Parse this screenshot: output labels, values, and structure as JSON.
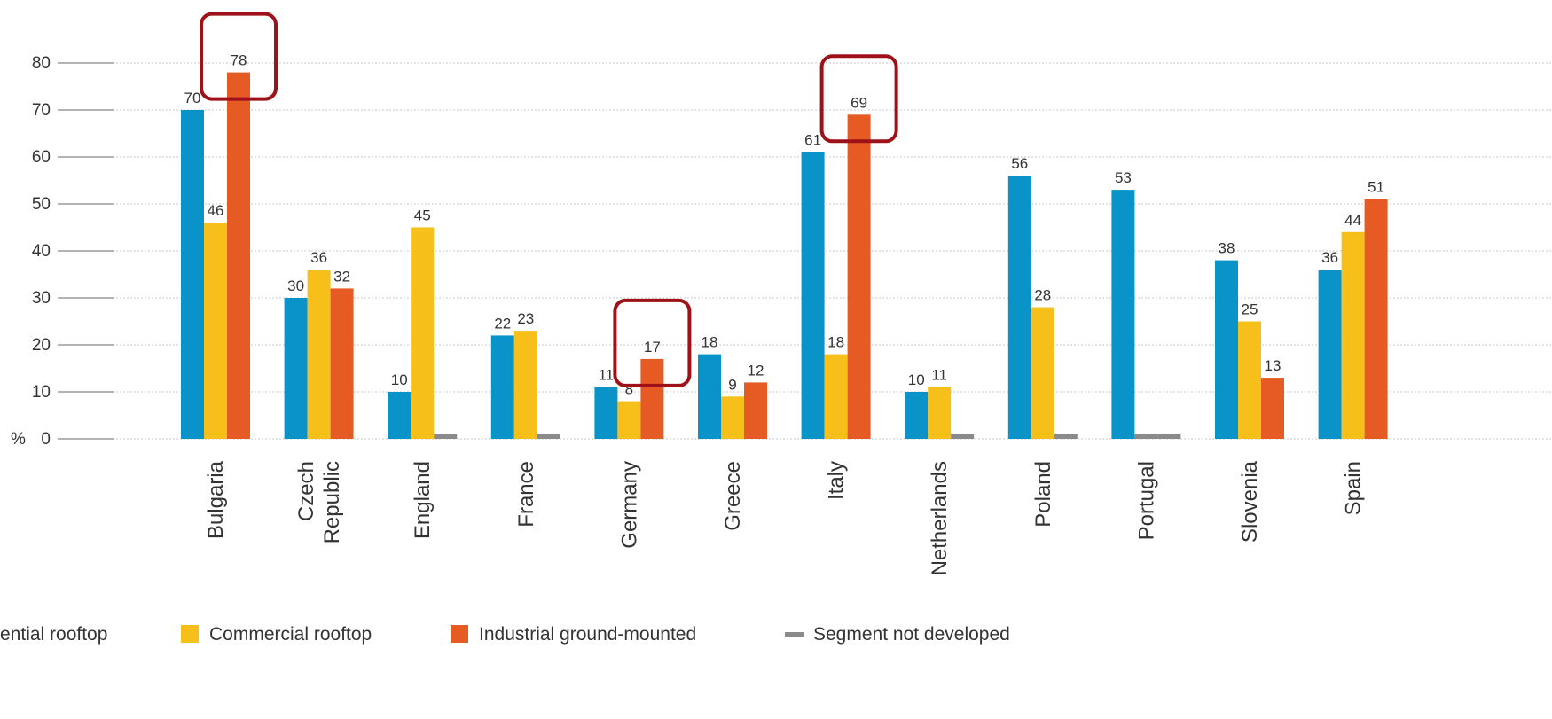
{
  "colors": {
    "residential": "#0a93c9",
    "commercial": "#f7bf1a",
    "industrial": "#e65a24",
    "not_developed": "#8a8a8a",
    "highlight": "#9f1118",
    "text": "#333333",
    "grid": "#c9c9c9"
  },
  "chart_data": {
    "type": "bar",
    "y_unit": "%",
    "ylim": [
      0,
      80
    ],
    "yticks": [
      0,
      10,
      20,
      30,
      40,
      50,
      60,
      70,
      80
    ],
    "categories": [
      "Bulgaria",
      "Czech Republic",
      "England",
      "France",
      "Germany",
      "Greece",
      "Italy",
      "Netherlands",
      "Poland",
      "Portugal",
      "Slovenia",
      "Spain"
    ],
    "category_labels": [
      [
        "Bulgaria"
      ],
      [
        "Czech",
        "Republic"
      ],
      [
        "England"
      ],
      [
        "France"
      ],
      [
        "Germany"
      ],
      [
        "Greece"
      ],
      [
        "Italy"
      ],
      [
        "Netherlands"
      ],
      [
        "Poland"
      ],
      [
        "Portugal"
      ],
      [
        "Slovenia"
      ],
      [
        "Spain"
      ]
    ],
    "series": [
      {
        "name": "ential rooftop",
        "color_key": "residential",
        "values": [
          70,
          30,
          10,
          22,
          11,
          18,
          61,
          10,
          56,
          53,
          38,
          36
        ]
      },
      {
        "name": "Commercial rooftop",
        "color_key": "commercial",
        "values": [
          46,
          36,
          45,
          23,
          8,
          9,
          18,
          11,
          28,
          null,
          25,
          44
        ]
      },
      {
        "name": "Industrial ground-mounted",
        "color_key": "industrial",
        "values": [
          78,
          32,
          null,
          null,
          17,
          12,
          69,
          null,
          null,
          null,
          13,
          51
        ]
      }
    ],
    "not_developed": {
      "name": "Segment not developed",
      "color_key": "not_developed",
      "entries": [
        {
          "category": "England",
          "series": "Industrial ground-mounted"
        },
        {
          "category": "France",
          "series": "Industrial ground-mounted"
        },
        {
          "category": "Netherlands",
          "series": "Industrial ground-mounted"
        },
        {
          "category": "Poland",
          "series": "Industrial ground-mounted"
        },
        {
          "category": "Portugal",
          "series": "Commercial rooftop"
        },
        {
          "category": "Portugal",
          "series": "Industrial ground-mounted"
        }
      ]
    },
    "highlights": [
      {
        "category": "Bulgaria",
        "series": "Industrial ground-mounted"
      },
      {
        "category": "Germany",
        "series": "Industrial ground-mounted"
      },
      {
        "category": "Italy",
        "series": "Industrial ground-mounted"
      }
    ],
    "legend": {
      "placement": "bottom",
      "items": [
        {
          "label": "ential rooftop",
          "kind": "square",
          "color_key": "residential"
        },
        {
          "label": "Commercial rooftop",
          "kind": "square",
          "color_key": "commercial"
        },
        {
          "label": "Industrial ground-mounted",
          "kind": "square",
          "color_key": "industrial"
        },
        {
          "label": "Segment not developed",
          "kind": "line",
          "color_key": "not_developed"
        }
      ]
    },
    "grid": true
  }
}
